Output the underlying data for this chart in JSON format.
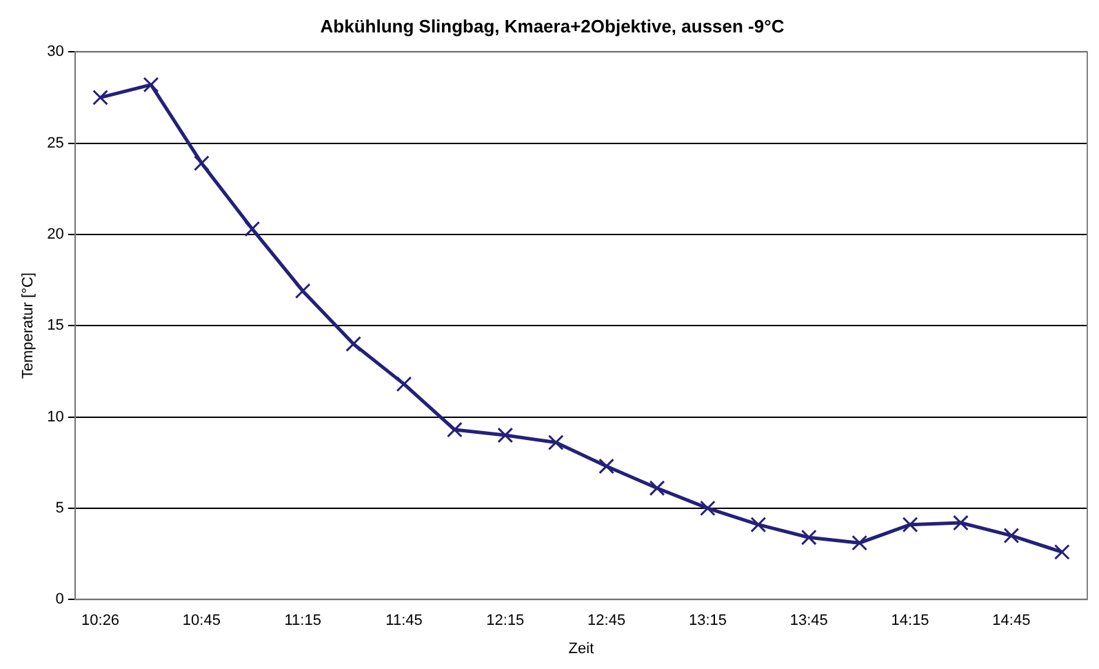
{
  "chart_data": {
    "type": "line",
    "title": "Abkühlung Slingbag, Kmaera+2Objektive, aussen -9°C",
    "xlabel": "Zeit",
    "ylabel": "Temperatur [°C]",
    "categories": [
      "10:26",
      null,
      "10:45",
      null,
      "11:15",
      null,
      "11:45",
      null,
      "12:15",
      null,
      "12:45",
      null,
      "13:15",
      null,
      "13:45",
      null,
      "14:15",
      null,
      "14:45",
      null
    ],
    "series": [
      {
        "color": "#24207a",
        "values": [
          27.5,
          28.2,
          23.9,
          20.3,
          16.9,
          14.0,
          11.8,
          9.3,
          9.0,
          8.6,
          7.3,
          6.1,
          5.0,
          4.1,
          3.4,
          3.1,
          4.1,
          4.2,
          3.5,
          2.6
        ]
      }
    ],
    "ylim": [
      0,
      30
    ],
    "yticks": [
      0,
      5,
      10,
      15,
      20,
      25,
      30
    ],
    "grid": "y",
    "legend": false,
    "marker": "cross",
    "line_style": "solid"
  }
}
